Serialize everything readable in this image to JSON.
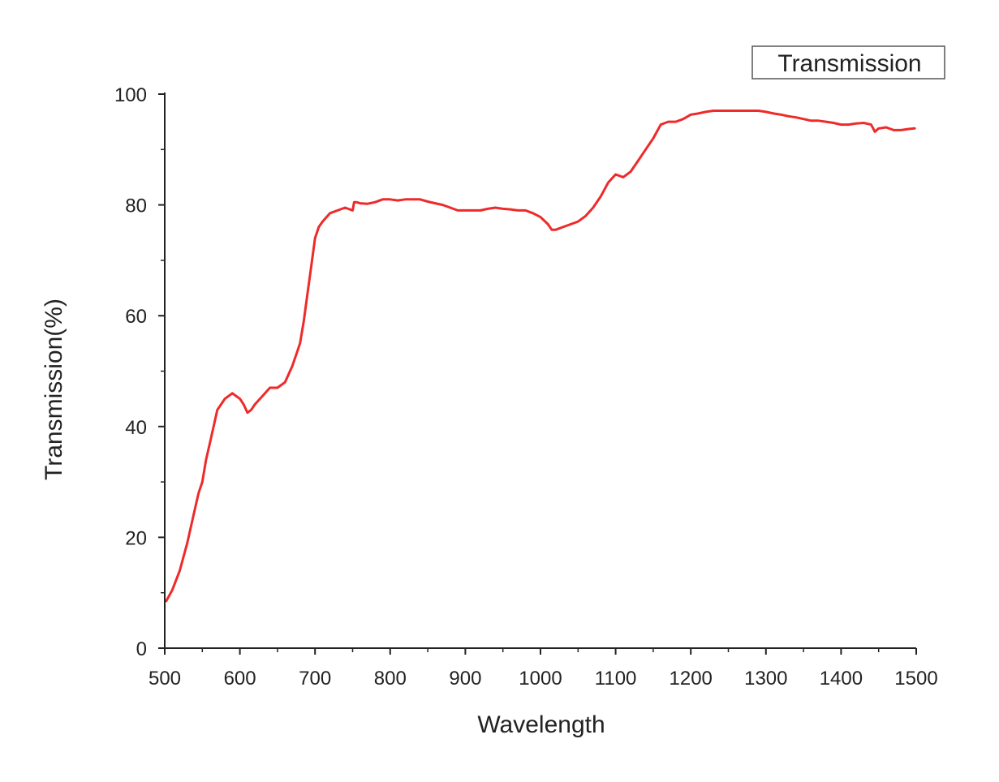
{
  "chart_data": {
    "type": "line",
    "title": "",
    "xlabel": "Wavelength",
    "ylabel": "Transmission(%)",
    "xlim": [
      500,
      1500
    ],
    "ylim": [
      0,
      100
    ],
    "x_ticks": [
      500,
      600,
      700,
      800,
      900,
      1000,
      1100,
      1200,
      1300,
      1400,
      1500
    ],
    "y_ticks": [
      0,
      20,
      40,
      60,
      80,
      100
    ],
    "grid": false,
    "legend": {
      "position": "top-right",
      "entries": [
        "Transmission"
      ]
    },
    "series": [
      {
        "name": "Transmission",
        "color": "#ee2a2a",
        "x": [
          502,
          510,
          520,
          530,
          540,
          545,
          550,
          555,
          560,
          570,
          580,
          590,
          600,
          605,
          610,
          615,
          620,
          630,
          640,
          650,
          660,
          670,
          680,
          685,
          690,
          695,
          700,
          705,
          710,
          720,
          730,
          740,
          750,
          752,
          755,
          760,
          770,
          780,
          790,
          800,
          810,
          820,
          830,
          840,
          850,
          860,
          870,
          880,
          890,
          900,
          910,
          920,
          930,
          940,
          950,
          960,
          970,
          980,
          990,
          1000,
          1010,
          1015,
          1020,
          1030,
          1040,
          1050,
          1060,
          1070,
          1080,
          1090,
          1100,
          1110,
          1120,
          1130,
          1140,
          1150,
          1160,
          1170,
          1180,
          1190,
          1200,
          1210,
          1220,
          1230,
          1240,
          1250,
          1260,
          1270,
          1280,
          1290,
          1300,
          1310,
          1320,
          1330,
          1340,
          1350,
          1360,
          1370,
          1380,
          1390,
          1400,
          1410,
          1420,
          1430,
          1440,
          1445,
          1450,
          1460,
          1470,
          1480,
          1490,
          1498
        ],
        "y": [
          8.5,
          10.5,
          14,
          19,
          25,
          28,
          30,
          34,
          37,
          43,
          45,
          46,
          45,
          44,
          42.5,
          43,
          44,
          45.5,
          47,
          47,
          48,
          51,
          55,
          59,
          64,
          69,
          74,
          76,
          77,
          78.5,
          79,
          79.5,
          79,
          80.5,
          80.5,
          80.3,
          80.2,
          80.5,
          81,
          81,
          80.8,
          81,
          81,
          81,
          80.6,
          80.3,
          80,
          79.5,
          79,
          79,
          79,
          79,
          79.3,
          79.5,
          79.3,
          79.2,
          79,
          79,
          78.5,
          77.8,
          76.5,
          75.5,
          75.5,
          76,
          76.5,
          77,
          78,
          79.5,
          81.5,
          84,
          85.5,
          85,
          86,
          88,
          90,
          92,
          94.5,
          95,
          95,
          95.5,
          96.3,
          96.5,
          96.8,
          97,
          97,
          97,
          97,
          97,
          97,
          97,
          96.8,
          96.5,
          96.3,
          96,
          95.8,
          95.5,
          95.2,
          95.2,
          95,
          94.8,
          94.5,
          94.5,
          94.7,
          94.8,
          94.5,
          93.2,
          93.8,
          94,
          93.5,
          93.5,
          93.7,
          93.8
        ]
      }
    ]
  }
}
